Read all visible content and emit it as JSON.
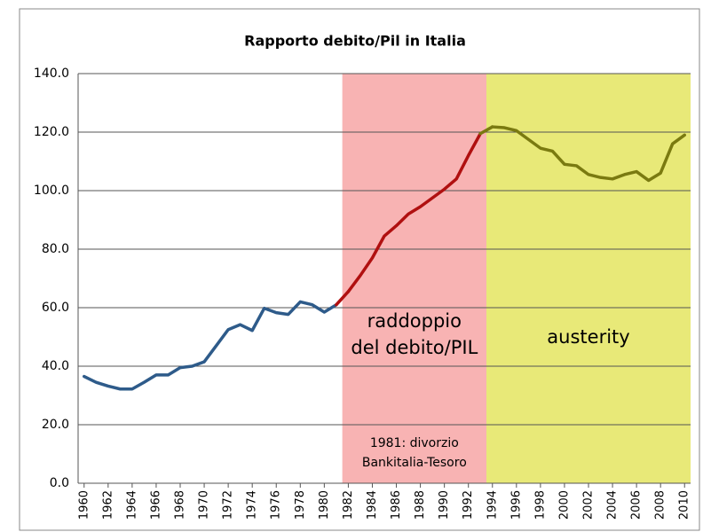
{
  "chart_data": {
    "type": "line",
    "title": "Rapporto debito/Pil in Italia",
    "x": [
      1960,
      1961,
      1962,
      1963,
      1964,
      1965,
      1966,
      1967,
      1968,
      1969,
      1970,
      1971,
      1972,
      1973,
      1974,
      1975,
      1976,
      1977,
      1978,
      1979,
      1980,
      1981,
      1982,
      1983,
      1984,
      1985,
      1986,
      1987,
      1988,
      1989,
      1990,
      1991,
      1992,
      1993,
      1994,
      1995,
      1996,
      1997,
      1998,
      1999,
      2000,
      2001,
      2002,
      2003,
      2004,
      2005,
      2006,
      2007,
      2008,
      2009,
      2010
    ],
    "xlim": [
      1959.5,
      2010.5
    ],
    "xticks": [
      1960,
      1962,
      1964,
      1966,
      1968,
      1970,
      1972,
      1974,
      1976,
      1978,
      1980,
      1982,
      1984,
      1986,
      1988,
      1990,
      1992,
      1994,
      1996,
      1998,
      2000,
      2002,
      2004,
      2006,
      2008,
      2010
    ],
    "ylim": [
      0,
      140
    ],
    "yticks": [
      {
        "value": 0,
        "label": "0.0"
      },
      {
        "value": 20,
        "label": "20.0"
      },
      {
        "value": 40,
        "label": "40.0"
      },
      {
        "value": 60,
        "label": "60.0"
      },
      {
        "value": 80,
        "label": "80.0"
      },
      {
        "value": 100,
        "label": "100.0"
      },
      {
        "value": 120,
        "label": "120.0"
      },
      {
        "value": 140,
        "label": "140.0"
      }
    ],
    "grid": true,
    "series": [
      {
        "color": "#2e5b8a",
        "values": [
          36.5,
          34.5,
          33.2,
          32.2,
          32.2,
          34.5,
          37,
          37,
          39.5,
          40,
          41.5,
          47,
          52.5,
          54.2,
          52.2,
          59.8,
          58.3,
          57.7,
          62,
          61,
          58.5,
          61,
          null,
          null,
          null,
          null,
          null,
          null,
          null,
          null,
          null,
          null,
          null,
          null,
          null,
          null,
          null,
          null,
          null,
          null,
          null,
          null,
          null,
          null,
          null,
          null,
          null,
          null,
          null,
          null,
          null
        ]
      },
      {
        "color": "#b01010",
        "values": [
          null,
          null,
          null,
          null,
          null,
          null,
          null,
          null,
          null,
          null,
          null,
          null,
          null,
          null,
          null,
          null,
          null,
          null,
          null,
          null,
          null,
          null,
          65.5,
          71,
          77,
          84.5,
          88,
          92,
          94.5,
          97.5,
          100.5,
          104,
          112,
          119.5,
          null,
          null,
          null,
          null,
          null,
          null,
          null,
          null,
          null,
          null,
          null,
          null,
          null,
          null,
          null,
          null,
          null
        ]
      },
      {
        "color": "#7a7a10",
        "values": [
          null,
          null,
          null,
          null,
          null,
          null,
          null,
          null,
          null,
          null,
          null,
          null,
          null,
          null,
          null,
          null,
          null,
          null,
          null,
          null,
          null,
          null,
          null,
          null,
          null,
          null,
          null,
          null,
          null,
          null,
          null,
          null,
          null,
          null,
          121.8,
          121.5,
          120.5,
          117.5,
          114.5,
          113.5,
          109,
          108.5,
          105.5,
          104.5,
          104,
          105.5,
          106.5,
          103.5,
          106,
          116,
          119
        ]
      }
    ],
    "regions": [
      {
        "from": 1981.5,
        "to": 1993.5,
        "color": "#f8b3b3",
        "label": [
          "raddoppio",
          "del debito/PIL"
        ],
        "note": [
          "1981: divorzio",
          "Bankitalia-Tesoro"
        ]
      },
      {
        "from": 1993.5,
        "to": 2010.5,
        "color": "#e8e978",
        "label": [
          "austerity"
        ]
      }
    ]
  }
}
